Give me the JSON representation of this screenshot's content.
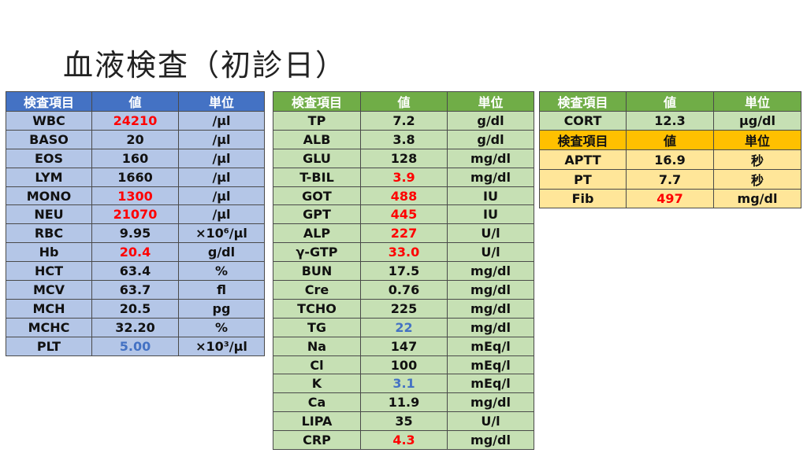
{
  "title": "血液検査（初診日）",
  "headers": {
    "item": "検査項目",
    "value": "値",
    "unit": "単位"
  },
  "colors": {
    "high": "#ff0000",
    "low": "#4472c4",
    "blood_header": "#4472c4",
    "chem_header": "#70ad47",
    "coag_header": "#ffc000"
  },
  "blood": [
    {
      "item": "WBC",
      "value": "24210",
      "unit": "/μl",
      "flag": "high"
    },
    {
      "item": "BASO",
      "value": "20",
      "unit": "/μl",
      "flag": ""
    },
    {
      "item": "EOS",
      "value": "160",
      "unit": "/μl",
      "flag": ""
    },
    {
      "item": "LYM",
      "value": "1660",
      "unit": "/μl",
      "flag": ""
    },
    {
      "item": "MONO",
      "value": "1300",
      "unit": "/μl",
      "flag": "high"
    },
    {
      "item": "NEU",
      "value": "21070",
      "unit": "/μl",
      "flag": "high"
    },
    {
      "item": "RBC",
      "value": "9.95",
      "unit": "×10⁶/μl",
      "flag": ""
    },
    {
      "item": "Hb",
      "value": "20.4",
      "unit": "g/dl",
      "flag": "high"
    },
    {
      "item": "HCT",
      "value": "63.4",
      "unit": "%",
      "flag": ""
    },
    {
      "item": "MCV",
      "value": "63.7",
      "unit": "fl",
      "flag": ""
    },
    {
      "item": "MCH",
      "value": "20.5",
      "unit": "pg",
      "flag": ""
    },
    {
      "item": "MCHC",
      "value": "32.20",
      "unit": "%",
      "flag": ""
    },
    {
      "item": "PLT",
      "value": "5.00",
      "unit": "×10³/μl",
      "flag": "low"
    }
  ],
  "chem": [
    {
      "item": "TP",
      "value": "7.2",
      "unit": "g/dl",
      "flag": ""
    },
    {
      "item": "ALB",
      "value": "3.8",
      "unit": "g/dl",
      "flag": ""
    },
    {
      "item": "GLU",
      "value": "128",
      "unit": "mg/dl",
      "flag": ""
    },
    {
      "item": "T-BIL",
      "value": "3.9",
      "unit": "mg/dl",
      "flag": "high"
    },
    {
      "item": "GOT",
      "value": "488",
      "unit": "IU",
      "flag": "high"
    },
    {
      "item": "GPT",
      "value": "445",
      "unit": "IU",
      "flag": "high"
    },
    {
      "item": "ALP",
      "value": "227",
      "unit": "U/l",
      "flag": "high"
    },
    {
      "item": "γ-GTP",
      "value": "33.0",
      "unit": "U/l",
      "flag": "high"
    },
    {
      "item": "BUN",
      "value": "17.5",
      "unit": "mg/dl",
      "flag": ""
    },
    {
      "item": "Cre",
      "value": "0.76",
      "unit": "mg/dl",
      "flag": ""
    },
    {
      "item": "TCHO",
      "value": "225",
      "unit": "mg/dl",
      "flag": ""
    },
    {
      "item": "TG",
      "value": "22",
      "unit": "mg/dl",
      "flag": "low"
    },
    {
      "item": "Na",
      "value": "147",
      "unit": "mEq/l",
      "flag": ""
    },
    {
      "item": "Cl",
      "value": "100",
      "unit": "mEq/l",
      "flag": ""
    },
    {
      "item": "K",
      "value": "3.1",
      "unit": "mEq/l",
      "flag": "low"
    },
    {
      "item": "Ca",
      "value": "11.9",
      "unit": "mg/dl",
      "flag": ""
    },
    {
      "item": "LIPA",
      "value": "35",
      "unit": "U/l",
      "flag": ""
    },
    {
      "item": "CRP",
      "value": "4.3",
      "unit": "mg/dl",
      "flag": "high"
    }
  ],
  "cort": [
    {
      "item": "CORT",
      "value": "12.3",
      "unit": "μg/dl",
      "flag": ""
    }
  ],
  "coag": [
    {
      "item": "APTT",
      "value": "16.9",
      "unit": "秒",
      "flag": ""
    },
    {
      "item": "PT",
      "value": "7.7",
      "unit": "秒",
      "flag": ""
    },
    {
      "item": "Fib",
      "value": "497",
      "unit": "mg/dl",
      "flag": "high"
    }
  ]
}
